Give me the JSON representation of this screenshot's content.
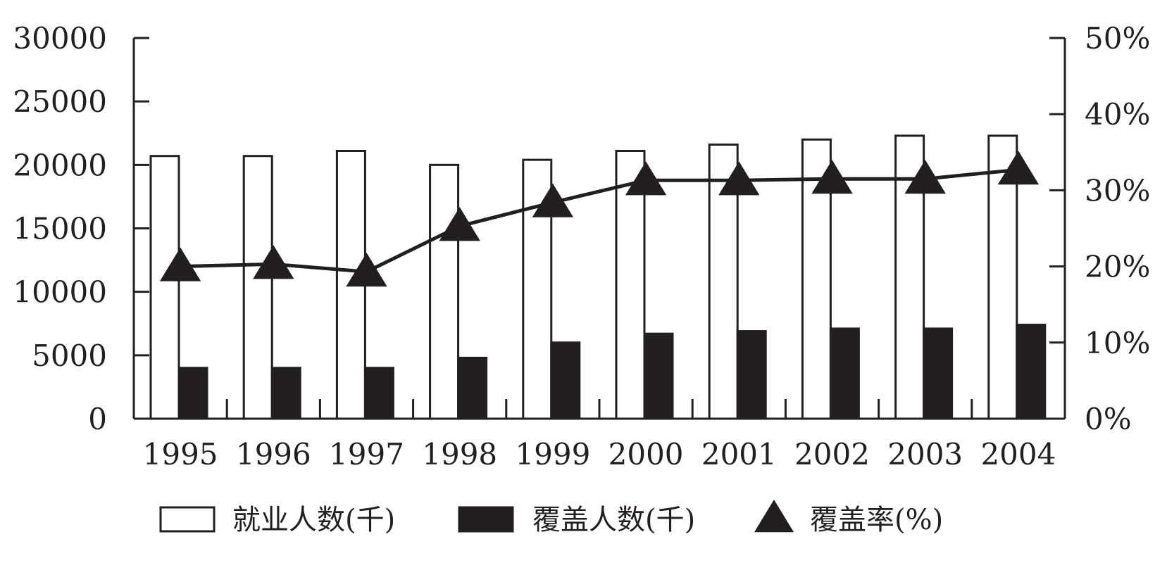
{
  "chart_data": {
    "type": "bar",
    "categories": [
      "1995",
      "1996",
      "1997",
      "1998",
      "1999",
      "2000",
      "2001",
      "2002",
      "2003",
      "2004"
    ],
    "series": [
      {
        "name": "就业人数(千)",
        "type": "bar",
        "axis": "left",
        "fill": "white",
        "values": [
          20700,
          20700,
          21100,
          20000,
          20400,
          21100,
          21600,
          22000,
          22300,
          22300
        ]
      },
      {
        "name": "覆盖人数(千)",
        "type": "bar",
        "axis": "left",
        "fill": "black",
        "values": [
          4000,
          4000,
          4000,
          4800,
          6000,
          6700,
          6900,
          7100,
          7100,
          7400
        ]
      },
      {
        "name": "覆盖率(%)",
        "type": "line",
        "axis": "right",
        "marker": "triangle",
        "values": [
          20.0,
          20.3,
          19.3,
          25.3,
          28.4,
          31.3,
          31.3,
          31.5,
          31.5,
          32.7
        ]
      }
    ],
    "left_axis": {
      "ylim": [
        0,
        30000
      ],
      "ticks": [
        "0",
        "5000",
        "10000",
        "15000",
        "20000",
        "25000",
        "30000"
      ]
    },
    "right_axis": {
      "ylim": [
        0,
        50
      ],
      "ticks": [
        "0%",
        "10%",
        "20%",
        "30%",
        "40%",
        "50%"
      ]
    },
    "legend": {
      "position": "bottom",
      "items": [
        "就业人数(千)",
        "覆盖人数(千)",
        "覆盖率(%)"
      ]
    },
    "grid": false,
    "colors": {
      "ink": "#231f20",
      "background": "#ffffff"
    }
  }
}
